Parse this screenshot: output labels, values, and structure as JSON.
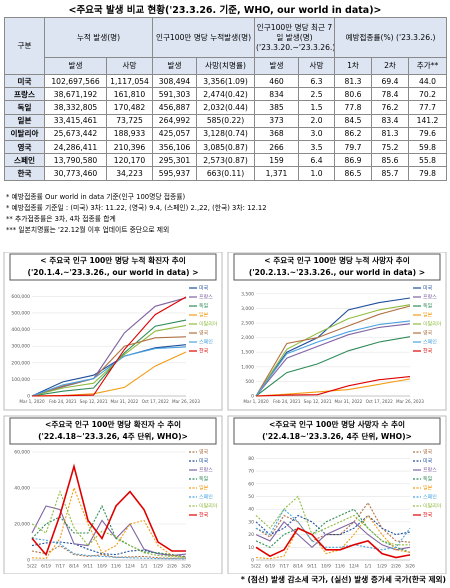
{
  "title": "<주요국 발생 비교 현황('23.3.26. 기준, WHO, our world in data)>",
  "table": {
    "group_headers": [
      "구분",
      "누적 발생(명)",
      "인구100만 명당 누적발생(명)",
      "인구100만 명당 최근 7일 발생(명) ('23.3.20.~'23.3.26.)",
      "예방접종률(%) ('23.3.26.)"
    ],
    "sub_headers": [
      "발생",
      "사망",
      "발생",
      "사망(치명률)",
      "발생",
      "사망",
      "1차",
      "2차",
      "추가**"
    ],
    "rows": [
      [
        "미국",
        "102,697,566",
        "1,117,054",
        "308,494",
        "3,356(1.09)",
        "460",
        "6.3",
        "81.3",
        "69.4",
        "44.0"
      ],
      [
        "프랑스",
        "38,671,192",
        "161,810",
        "591,303",
        "2,474(0.42)",
        "834",
        "2.5",
        "80.6",
        "78.4",
        "70.2"
      ],
      [
        "독일",
        "38,332,805",
        "170,482",
        "456,887",
        "2,032(0.44)",
        "385",
        "1.5",
        "77.8",
        "76.2",
        "77.7"
      ],
      [
        "일본",
        "33,415,461",
        "73,725",
        "264,992",
        "585(0.22)",
        "373",
        "2.0",
        "84.5",
        "83.4",
        "141.2"
      ],
      [
        "이탈리아",
        "25,673,442",
        "188,933",
        "425,057",
        "3,128(0.74)",
        "368",
        "3.0",
        "86.2",
        "81.3",
        "79.6"
      ],
      [
        "영국",
        "24,286,411",
        "210,396",
        "356,106",
        "3,085(0.87)",
        "266",
        "3.5",
        "79.7",
        "75.2",
        "59.8"
      ],
      [
        "스페인",
        "13,790,580",
        "120,170",
        "295,301",
        "2,573(0.87)",
        "159",
        "6.4",
        "86.9",
        "85.6",
        "55.8"
      ],
      [
        "한국",
        "30,773,460",
        "34,223",
        "595,937",
        "663(0.11)",
        "1,371",
        "1.0",
        "86.5",
        "85.7",
        "79.8"
      ]
    ]
  },
  "notes": [
    "* 예방접종률 Our world in data 기준(인구 100명당 접종률)",
    "* 예방접종률 기준일 : (미국) 3차: 11.22, (영국) 9.4, (스페인) 2.,22, (한국) 3차: 12.12",
    "** 추가접종률은 3차, 4차 접종률 합계",
    "*** 일본치명률는 '22.12월 이후 업데이트 중단으로 제외"
  ],
  "chart_data": [
    {
      "type": "line",
      "title": "< 주요국 인구 100만 명당 누적 확진자 추이",
      "subtitle": "('20.1.4.~'23.3.26., our world in data) >",
      "x": [
        "Mar 1, 2020",
        "Feb 24, 2021",
        "Sep 12, 2021",
        "Mar 31, 2022",
        "Oct 17, 2022",
        "Mar 26, 2023"
      ],
      "ylim": [
        0,
        650000
      ],
      "grid": true,
      "yticks": [
        0,
        {
          "value": 100000,
          "label": "100,000"
        },
        {
          "value": 200000,
          "label": "200,000"
        },
        {
          "value": 300000,
          "label": "300,000"
        },
        {
          "value": 400000,
          "label": "400,000"
        },
        {
          "value": 500000,
          "label": "500,000"
        },
        {
          "value": 600000,
          "label": "600,000"
        }
      ],
      "series": [
        {
          "name": "미국",
          "color": "#1f4e9c",
          "values": [
            0,
            85000,
            125000,
            240000,
            290000,
            308494
          ]
        },
        {
          "name": "프랑스",
          "color": "#8064a2",
          "values": [
            0,
            55000,
            105000,
            380000,
            540000,
            591303
          ]
        },
        {
          "name": "독일",
          "color": "#2e8b57",
          "values": [
            0,
            29000,
            48000,
            260000,
            420000,
            456887
          ]
        },
        {
          "name": "일본",
          "color": "#f39c12",
          "values": [
            0,
            3400,
            13000,
            52000,
            180000,
            264992
          ]
        },
        {
          "name": "이탈리아",
          "color": "#8fbc3f",
          "values": [
            0,
            48000,
            77000,
            250000,
            390000,
            425057
          ]
        },
        {
          "name": "영국",
          "color": "#b07040",
          "values": [
            0,
            60000,
            105000,
            300000,
            350000,
            356106
          ]
        },
        {
          "name": "스페인",
          "color": "#4aa3df",
          "values": [
            0,
            67000,
            105000,
            240000,
            285000,
            295301
          ]
        },
        {
          "name": "한국",
          "color": "#e00000",
          "values": [
            0,
            1700,
            5300,
            280000,
            490000,
            595937
          ]
        }
      ]
    },
    {
      "type": "line",
      "title": "< 주요국 인구 100만 명당 누적 사망자 추이",
      "subtitle": "('20.2.13.~'23.3.26., our world in data) >",
      "x": [
        "Mar 1, 2020",
        "Feb 24, 2021",
        "Sep 12, 2021",
        "Mar 31, 2022",
        "Oct 17, 2022",
        "Mar 26, 2023"
      ],
      "ylim": [
        0,
        3700
      ],
      "grid": true,
      "yticks": [
        0,
        500,
        {
          "value": 1000,
          "label": "1,000"
        },
        {
          "value": 1500,
          "label": "1,500"
        },
        {
          "value": 2000,
          "label": "2,000"
        },
        {
          "value": 2500,
          "label": "2,500"
        },
        {
          "value": 3000,
          "label": "3,000"
        },
        {
          "value": 3500,
          "label": "3,500"
        }
      ],
      "series": [
        {
          "name": "미국",
          "color": "#1f4e9c",
          "values": [
            0,
            1500,
            2000,
            2950,
            3200,
            3356
          ]
        },
        {
          "name": "프랑스",
          "color": "#8064a2",
          "values": [
            0,
            1300,
            1700,
            2100,
            2350,
            2474
          ]
        },
        {
          "name": "독일",
          "color": "#2e8b57",
          "values": [
            0,
            800,
            1100,
            1550,
            1850,
            2032
          ]
        },
        {
          "name": "일본",
          "color": "#f39c12",
          "values": [
            0,
            60,
            140,
            220,
            400,
            585
          ]
        },
        {
          "name": "이탈리아",
          "color": "#8fbc3f",
          "values": [
            0,
            1600,
            2150,
            2650,
            2950,
            3128
          ]
        },
        {
          "name": "영국",
          "color": "#b07040",
          "values": [
            0,
            1800,
            2000,
            2400,
            2800,
            3085
          ]
        },
        {
          "name": "스페인",
          "color": "#4aa3df",
          "values": [
            0,
            1450,
            1850,
            2200,
            2450,
            2573
          ]
        },
        {
          "name": "한국",
          "color": "#e00000",
          "values": [
            0,
            30,
            45,
            350,
            560,
            663
          ]
        }
      ]
    },
    {
      "type": "line",
      "title": "<주요국 인구 100만 명당 확진자 수 추이",
      "subtitle": "('22.4.18~'23.3.26, 4주 단위, WHO)>",
      "x": [
        "5/22",
        "6/19",
        "7/17",
        "8/14",
        "9/11",
        "10/9",
        "11/6",
        "12/4",
        "1/1",
        "1/29",
        "2/26",
        "3/26"
      ],
      "ylim": [
        0,
        60000
      ],
      "grid": true,
      "yticks": [
        0,
        {
          "value": 20000,
          "label": "20,000"
        },
        {
          "value": 40000,
          "label": "40,000"
        },
        {
          "value": 60000,
          "label": "60,000"
        }
      ],
      "series": [
        {
          "name": "영국",
          "color": "#b07040",
          "dashed": true,
          "values": [
            5000,
            3500,
            8000,
            3000,
            2000,
            3000,
            1500,
            1800,
            2000,
            1200,
            1000,
            1100
          ]
        },
        {
          "name": "미국",
          "color": "#1f4e9c",
          "dashed": true,
          "values": [
            8000,
            9500,
            10000,
            9000,
            6000,
            3500,
            3000,
            5000,
            5500,
            3500,
            2800,
            1900
          ]
        },
        {
          "name": "프랑스",
          "color": "#8064a2",
          "dashed": false,
          "values": [
            15000,
            30000,
            28000,
            9000,
            8000,
            22000,
            12000,
            20000,
            6000,
            3500,
            2500,
            3300
          ]
        },
        {
          "name": "독일",
          "color": "#2e8b57",
          "dashed": true,
          "values": [
            12000,
            20000,
            24000,
            15000,
            15000,
            30000,
            12000,
            8000,
            4500,
            4000,
            3000,
            1500
          ]
        },
        {
          "name": "일본",
          "color": "#f39c12",
          "dashed": true,
          "values": [
            1200,
            900,
            12000,
            40000,
            20000,
            4000,
            8000,
            20000,
            22000,
            8000,
            2500,
            1500
          ]
        },
        {
          "name": "스페인",
          "color": "#4aa3df",
          "dashed": true,
          "values": [
            12000,
            11000,
            9000,
            3500,
            2500,
            2000,
            1500,
            1200,
            1000,
            800,
            700,
            650
          ]
        },
        {
          "name": "이탈리아",
          "color": "#8fbc3f",
          "dashed": true,
          "values": [
            20000,
            15000,
            38000,
            18000,
            8000,
            16000,
            13000,
            8000,
            4000,
            2500,
            2000,
            1500
          ]
        },
        {
          "name": "한국",
          "color": "#e00000",
          "dashed": false,
          "values": [
            12000,
            3000,
            25000,
            52000,
            22000,
            12000,
            30000,
            38000,
            28000,
            10000,
            5000,
            5000
          ]
        }
      ]
    },
    {
      "type": "line",
      "title": "<주요국 인구 100만 명당 사망자 수 추이",
      "subtitle": "('22.4.18~'23.3.26, 4주 단위, WHO)>",
      "x": [
        "5/22",
        "6/19",
        "7/17",
        "8/14",
        "9/11",
        "10/9",
        "11/6",
        "12/4",
        "1/1",
        "1/29",
        "2/26",
        "3/26"
      ],
      "ylim": [
        0,
        85
      ],
      "grid": true,
      "yticks": [
        0,
        10,
        20,
        30,
        40,
        50,
        60,
        70,
        80
      ],
      "series": [
        {
          "name": "영국",
          "color": "#b07040",
          "dashed": true,
          "values": [
            25,
            18,
            35,
            30,
            15,
            20,
            20,
            30,
            45,
            25,
            15,
            14
          ]
        },
        {
          "name": "미국",
          "color": "#1f4e9c",
          "dashed": true,
          "values": [
            30,
            20,
            25,
            35,
            30,
            20,
            20,
            25,
            35,
            25,
            20,
            22
          ]
        },
        {
          "name": "프랑스",
          "color": "#8064a2",
          "dashed": false,
          "values": [
            20,
            15,
            30,
            20,
            10,
            20,
            25,
            30,
            20,
            12,
            8,
            10
          ]
        },
        {
          "name": "독일",
          "color": "#2e8b57",
          "dashed": true,
          "values": [
            15,
            10,
            20,
            25,
            20,
            30,
            35,
            40,
            25,
            15,
            10,
            6
          ]
        },
        {
          "name": "일본",
          "color": "#f39c12",
          "dashed": true,
          "values": [
            2,
            1,
            3,
            25,
            20,
            5,
            8,
            20,
            35,
            20,
            8,
            6
          ]
        },
        {
          "name": "스페인",
          "color": "#4aa3df",
          "dashed": true,
          "values": [
            25,
            20,
            40,
            30,
            15,
            10,
            10,
            12,
            10,
            8,
            10,
            25
          ]
        },
        {
          "name": "이탈리아",
          "color": "#8fbc3f",
          "dashed": true,
          "values": [
            35,
            25,
            40,
            50,
            20,
            25,
            30,
            35,
            25,
            15,
            12,
            12
          ]
        },
        {
          "name": "한국",
          "color": "#e00000",
          "dashed": false,
          "values": [
            10,
            3,
            8,
            25,
            20,
            8,
            8,
            12,
            15,
            5,
            2,
            4
          ]
        }
      ]
    }
  ],
  "footer": "* (점선) 발생 감소세 국가, (실선) 발생 증가세 국가(한국 제외)"
}
